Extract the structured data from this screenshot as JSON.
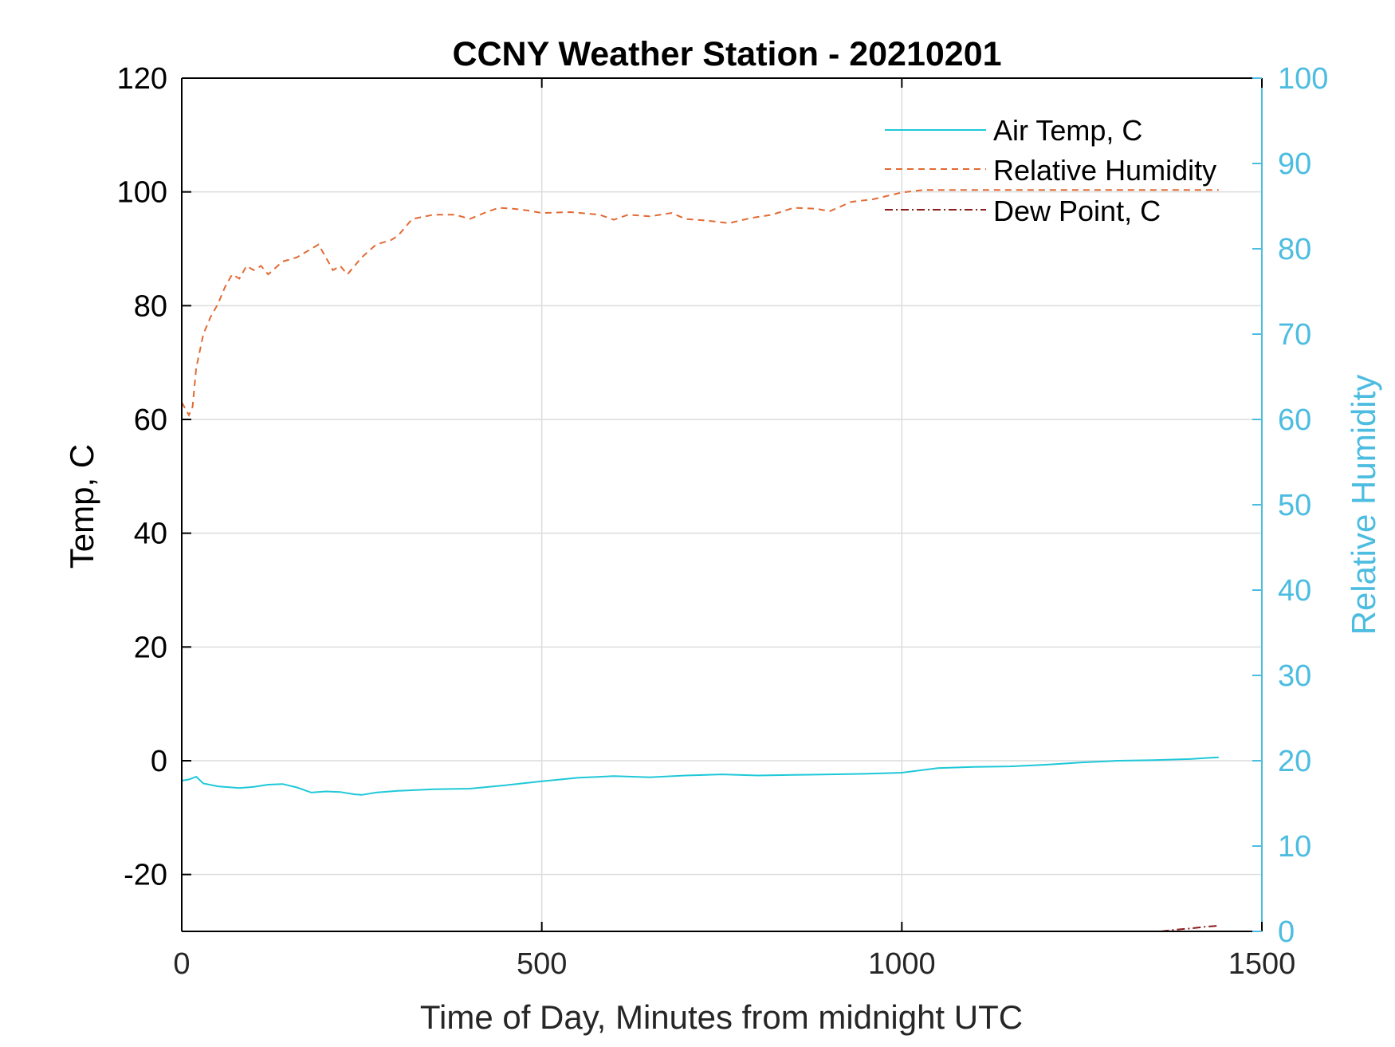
{
  "chart_data": {
    "type": "line",
    "title": "CCNY Weather Station - 20210201",
    "xlabel": "Time of Day, Minutes from midnight UTC",
    "ylabel_left": "Temp, C",
    "ylabel_right": "Relative Humidity",
    "xlim": [
      0,
      1500
    ],
    "ylim_left": [
      -30,
      120
    ],
    "ylim_right": [
      0,
      100
    ],
    "x_ticks": [
      "0",
      "500",
      "1000",
      "1500"
    ],
    "x_tick_values": [
      0,
      500,
      1000,
      1500
    ],
    "y_left_ticks": [
      "-20",
      "0",
      "20",
      "40",
      "60",
      "80",
      "100",
      "120"
    ],
    "y_left_tick_values": [
      -20,
      0,
      20,
      40,
      60,
      80,
      100,
      120
    ],
    "y_right_ticks": [
      "0",
      "10",
      "20",
      "30",
      "40",
      "50",
      "60",
      "70",
      "80",
      "90",
      "100"
    ],
    "y_right_tick_values": [
      0,
      10,
      20,
      30,
      40,
      50,
      60,
      70,
      80,
      90,
      100
    ],
    "grid": true,
    "legend_position": "top-right",
    "colors": {
      "air_temp": "#1ec8d8",
      "relative_humidity": "#e26a33",
      "dew_point": "#8b1a1a",
      "right_axis": "#4cbde0",
      "grid": "#dcdcdc",
      "axis": "#000000"
    },
    "series": [
      {
        "name": "Air Temp, C",
        "axis": "left",
        "style": "solid",
        "x": [
          0,
          10,
          20,
          30,
          50,
          80,
          100,
          120,
          140,
          160,
          180,
          200,
          220,
          240,
          250,
          270,
          300,
          350,
          400,
          450,
          500,
          550,
          600,
          650,
          700,
          750,
          800,
          850,
          900,
          950,
          1000,
          1050,
          1100,
          1150,
          1200,
          1250,
          1300,
          1350,
          1400,
          1440
        ],
        "y": [
          -3.5,
          -3.3,
          -2.8,
          -4.0,
          -4.5,
          -4.8,
          -4.6,
          -4.2,
          -4.1,
          -4.7,
          -5.6,
          -5.4,
          -5.5,
          -5.9,
          -6.0,
          -5.6,
          -5.3,
          -5.0,
          -4.9,
          -4.3,
          -3.6,
          -3.0,
          -2.7,
          -2.9,
          -2.6,
          -2.4,
          -2.6,
          -2.5,
          -2.4,
          -2.3,
          -2.1,
          -1.3,
          -1.1,
          -1.0,
          -0.7,
          -0.3,
          0.0,
          0.1,
          0.3,
          0.6
        ]
      },
      {
        "name": "Relative Humidity",
        "axis": "right",
        "style": "dashed",
        "x": [
          0,
          10,
          15,
          20,
          30,
          40,
          50,
          60,
          70,
          80,
          90,
          100,
          110,
          120,
          140,
          160,
          180,
          190,
          200,
          210,
          220,
          230,
          240,
          250,
          270,
          290,
          300,
          320,
          350,
          380,
          400,
          420,
          440,
          460,
          480,
          500,
          540,
          580,
          600,
          620,
          650,
          680,
          700,
          730,
          760,
          790,
          820,
          850,
          880,
          900,
          930,
          960,
          1000,
          1030,
          1100,
          1200,
          1300,
          1440
        ],
        "y": [
          62.0,
          60.5,
          61.5,
          66.0,
          70.0,
          72.0,
          73.5,
          75.5,
          77.0,
          76.5,
          78.0,
          77.5,
          78.0,
          77.0,
          78.5,
          79.0,
          80.0,
          80.5,
          79.0,
          77.5,
          78.0,
          77.0,
          78.0,
          79.0,
          80.5,
          81.0,
          81.5,
          83.5,
          84.0,
          84.0,
          83.5,
          84.2,
          84.8,
          84.7,
          84.5,
          84.2,
          84.3,
          84.0,
          83.4,
          84.0,
          83.8,
          84.2,
          83.5,
          83.3,
          83.0,
          83.6,
          84.0,
          84.8,
          84.7,
          84.4,
          85.5,
          85.8,
          86.6,
          86.9,
          86.9,
          86.9,
          86.9,
          86.9
        ]
      },
      {
        "name": "Dew Point, C",
        "axis": "left",
        "style": "dash-dot",
        "x": [
          1360,
          1380,
          1400,
          1420,
          1440
        ],
        "y": [
          -30.0,
          -29.7,
          -29.5,
          -29.2,
          -29.0
        ]
      }
    ]
  }
}
